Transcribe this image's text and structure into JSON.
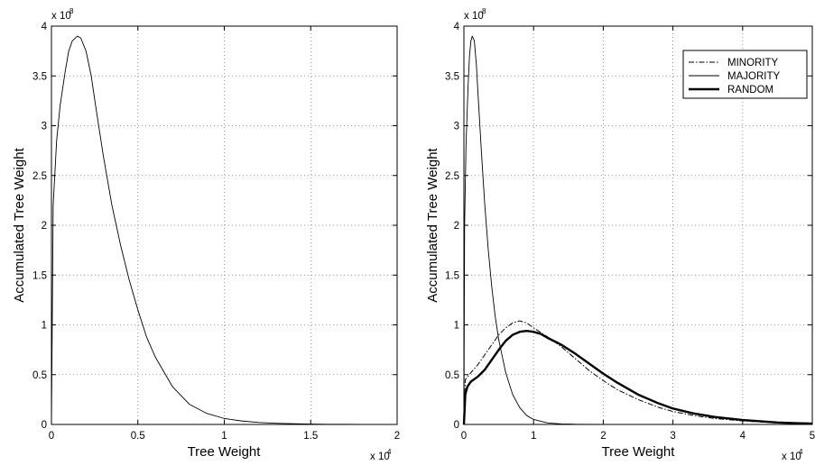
{
  "chart_data": [
    {
      "type": "line",
      "title": "",
      "xlabel": "Tree Weight",
      "ylabel": "Accumulated Tree Weight",
      "x_multiplier": "x 10",
      "x_exponent": "4",
      "y_multiplier": "x 10",
      "y_exponent": "8",
      "xlim": [
        0,
        2
      ],
      "ylim": [
        0,
        4
      ],
      "xticks": [
        "0",
        "0.5",
        "1",
        "1.5",
        "2"
      ],
      "yticks": [
        "0",
        "0.5",
        "1",
        "1.5",
        "2",
        "2.5",
        "3",
        "3.5",
        "4"
      ],
      "grid": true,
      "legend": null,
      "series": [
        {
          "style": "thin",
          "x": [
            0,
            0.01,
            0.03,
            0.05,
            0.08,
            0.1,
            0.12,
            0.15,
            0.17,
            0.2,
            0.23,
            0.26,
            0.3,
            0.35,
            0.4,
            0.45,
            0.5,
            0.55,
            0.6,
            0.7,
            0.8,
            0.9,
            1.0,
            1.1,
            1.2,
            1.3,
            1.4,
            1.5,
            1.6,
            1.8,
            2.0
          ],
          "y": [
            0,
            2.2,
            2.85,
            3.2,
            3.55,
            3.75,
            3.85,
            3.9,
            3.88,
            3.75,
            3.5,
            3.15,
            2.7,
            2.2,
            1.8,
            1.45,
            1.15,
            0.88,
            0.68,
            0.38,
            0.2,
            0.11,
            0.06,
            0.035,
            0.02,
            0.012,
            0.007,
            0.004,
            0.002,
            0.0,
            0.0
          ]
        }
      ]
    },
    {
      "type": "line",
      "title": "",
      "xlabel": "Tree Weight",
      "ylabel": "Accumulated Tree Weight",
      "x_multiplier": "x 10",
      "x_exponent": "4",
      "y_multiplier": "x 10",
      "y_exponent": "8",
      "xlim": [
        0,
        5
      ],
      "ylim": [
        0,
        4
      ],
      "xticks": [
        "0",
        "1",
        "2",
        "3",
        "4",
        "5"
      ],
      "yticks": [
        "0",
        "0.5",
        "1",
        "1.5",
        "2",
        "2.5",
        "3",
        "3.5",
        "4"
      ],
      "grid": true,
      "legend": "top-right",
      "series": [
        {
          "name": "MINORITY",
          "style": "dashdot",
          "x": [
            0,
            0.02,
            0.1,
            0.2,
            0.3,
            0.4,
            0.5,
            0.6,
            0.7,
            0.8,
            0.9,
            1.0,
            1.2,
            1.4,
            1.6,
            1.8,
            2.0,
            2.2,
            2.5,
            2.8,
            3.0,
            3.3,
            3.6,
            4.0,
            4.5,
            5.0
          ],
          "y": [
            0,
            0.45,
            0.52,
            0.6,
            0.7,
            0.8,
            0.9,
            0.97,
            1.02,
            1.04,
            1.02,
            0.97,
            0.88,
            0.78,
            0.66,
            0.54,
            0.44,
            0.35,
            0.25,
            0.17,
            0.13,
            0.09,
            0.06,
            0.035,
            0.015,
            0.005
          ]
        },
        {
          "name": "MAJORITY",
          "style": "thin",
          "x": [
            0,
            0.01,
            0.03,
            0.06,
            0.08,
            0.1,
            0.12,
            0.15,
            0.18,
            0.2,
            0.25,
            0.3,
            0.35,
            0.4,
            0.45,
            0.5,
            0.6,
            0.7,
            0.8,
            0.9,
            1.0,
            1.2,
            1.4,
            1.6,
            2.0,
            2.5,
            3.0,
            5.0
          ],
          "y": [
            0,
            2.0,
            2.8,
            3.4,
            3.7,
            3.85,
            3.9,
            3.85,
            3.6,
            3.35,
            2.75,
            2.2,
            1.75,
            1.38,
            1.08,
            0.85,
            0.52,
            0.3,
            0.17,
            0.09,
            0.05,
            0.015,
            0.005,
            0.002,
            0.0,
            0.0,
            0.0,
            0.0
          ]
        },
        {
          "name": "RANDOM",
          "style": "thick",
          "x": [
            0,
            0.02,
            0.05,
            0.1,
            0.2,
            0.3,
            0.4,
            0.5,
            0.6,
            0.7,
            0.8,
            0.9,
            1.0,
            1.1,
            1.2,
            1.4,
            1.6,
            1.8,
            2.0,
            2.2,
            2.5,
            2.8,
            3.0,
            3.3,
            3.6,
            4.0,
            4.5,
            5.0
          ],
          "y": [
            0,
            0.3,
            0.38,
            0.43,
            0.48,
            0.55,
            0.65,
            0.75,
            0.84,
            0.9,
            0.93,
            0.94,
            0.93,
            0.91,
            0.87,
            0.8,
            0.71,
            0.61,
            0.51,
            0.42,
            0.3,
            0.21,
            0.16,
            0.11,
            0.075,
            0.045,
            0.02,
            0.008
          ]
        }
      ]
    }
  ]
}
